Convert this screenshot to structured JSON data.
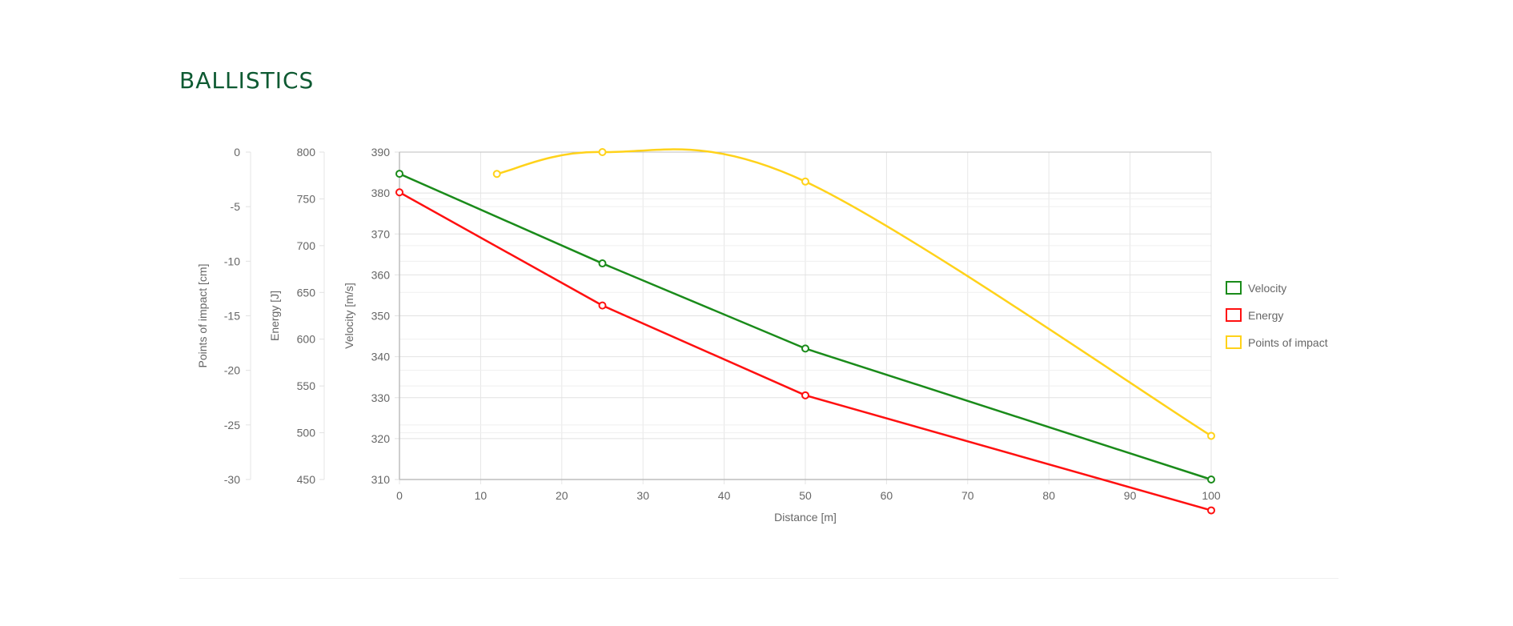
{
  "page": {
    "title": "BALLISTICS"
  },
  "colors": {
    "velocity": "#1a8b1a",
    "energy": "#ff1010",
    "poi": "#ffd21a",
    "title": "#0e5a32"
  },
  "chart_data": {
    "type": "line",
    "title": "",
    "xlabel": "Distance [m]",
    "xlim": [
      0,
      100
    ],
    "x_ticks": [
      0,
      10,
      20,
      30,
      40,
      50,
      60,
      70,
      80,
      90,
      100
    ],
    "grid": true,
    "legend_position": "right",
    "axes": [
      {
        "id": "poi",
        "label": "Points of impact [cm]",
        "range": [
          -30,
          0
        ],
        "ticks": [
          0,
          -5,
          -10,
          -15,
          -20,
          -25,
          -30
        ]
      },
      {
        "id": "energy",
        "label": "Energy [J]",
        "range": [
          450,
          800
        ],
        "ticks": [
          800,
          750,
          700,
          650,
          600,
          550,
          500,
          450
        ]
      },
      {
        "id": "velocity",
        "label": "Velocity [m/s]",
        "range": [
          310,
          390
        ],
        "ticks": [
          390,
          380,
          370,
          360,
          350,
          340,
          330,
          320,
          310
        ]
      }
    ],
    "series": [
      {
        "name": "Velocity",
        "axis": "velocity",
        "color": "#1a8b1a",
        "smooth": false,
        "points": [
          [
            0,
            384.7
          ],
          [
            25,
            362.8
          ],
          [
            50,
            342.0
          ],
          [
            100,
            310.0
          ]
        ]
      },
      {
        "name": "Energy",
        "axis": "energy",
        "color": "#ff1010",
        "smooth": false,
        "points": [
          [
            0,
            757
          ],
          [
            25,
            636
          ],
          [
            50,
            540
          ],
          [
            100,
            417
          ]
        ]
      },
      {
        "name": "Points of impact",
        "axis": "poi",
        "color": "#ffd21a",
        "smooth": true,
        "points": [
          [
            12,
            -2.0
          ],
          [
            25,
            0.0
          ],
          [
            50,
            -2.7
          ],
          [
            100,
            -26.0
          ]
        ]
      }
    ]
  }
}
